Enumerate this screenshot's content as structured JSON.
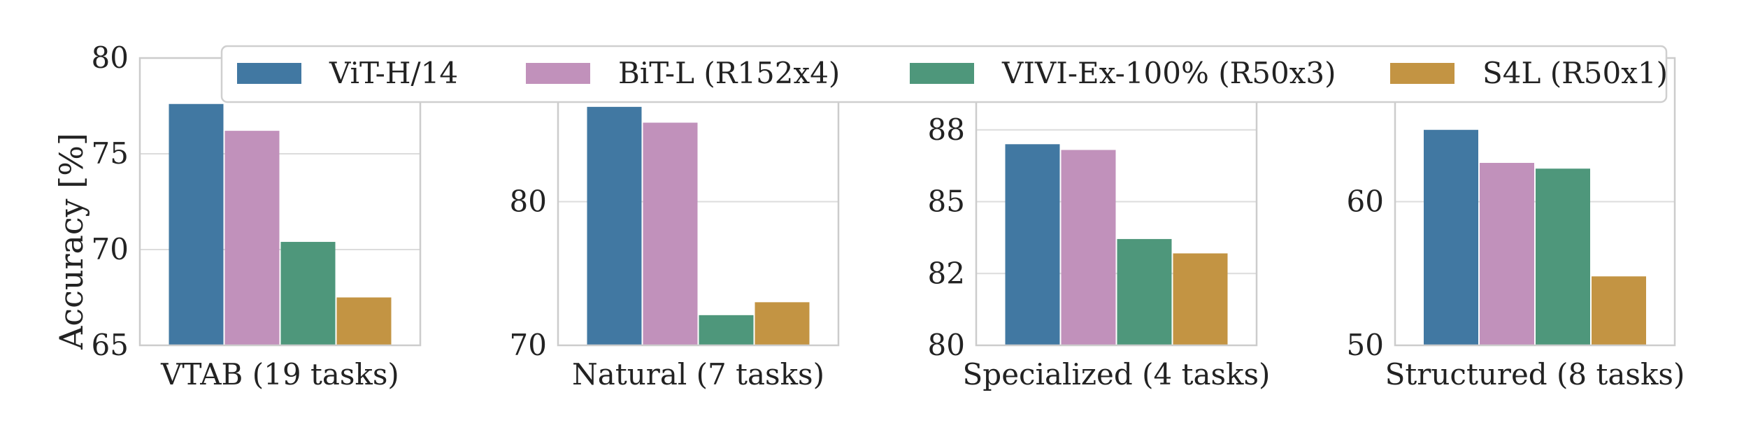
{
  "chart_data": {
    "type": "bar",
    "ylabel": "Accuracy [%]",
    "legend_position": "top",
    "grid": true,
    "series": [
      {
        "name": "ViT-H/14",
        "color": "#4178a2"
      },
      {
        "name": "BiT-L (R152x4)",
        "color": "#c191bb"
      },
      {
        "name": "VIVI-Ex-100% (R50x3)",
        "color": "#4e977b"
      },
      {
        "name": "S4L (R50x1)",
        "color": "#c39443"
      }
    ],
    "panels": [
      {
        "xlabel": "VTAB (19 tasks)",
        "ylim": [
          65,
          80
        ],
        "yticks": [
          65,
          70,
          75,
          80
        ],
        "tick_labels": [
          "65",
          "70",
          "75",
          "80"
        ],
        "values": [
          77.6,
          76.2,
          70.4,
          67.5
        ]
      },
      {
        "xlabel": "Natural (7 tasks)",
        "ylim": [
          70,
          90
        ],
        "yticks": [
          70,
          80
        ],
        "tick_labels": [
          "70",
          "80"
        ],
        "values": [
          86.6,
          85.5,
          72.1,
          73.0
        ]
      },
      {
        "xlabel": "Specialized (4 tasks)",
        "ylim": [
          80,
          90
        ],
        "yticks": [
          80,
          82.5,
          85,
          87.5
        ],
        "tick_labels": [
          "80",
          "82",
          "85",
          "88"
        ],
        "values": [
          87.0,
          86.8,
          83.7,
          83.2
        ]
      },
      {
        "xlabel": "Structured (8 tasks)",
        "ylim": [
          50,
          70
        ],
        "yticks": [
          50,
          60
        ],
        "tick_labels": [
          "50",
          "60"
        ],
        "values": [
          65.0,
          62.7,
          62.3,
          54.8
        ]
      }
    ]
  }
}
